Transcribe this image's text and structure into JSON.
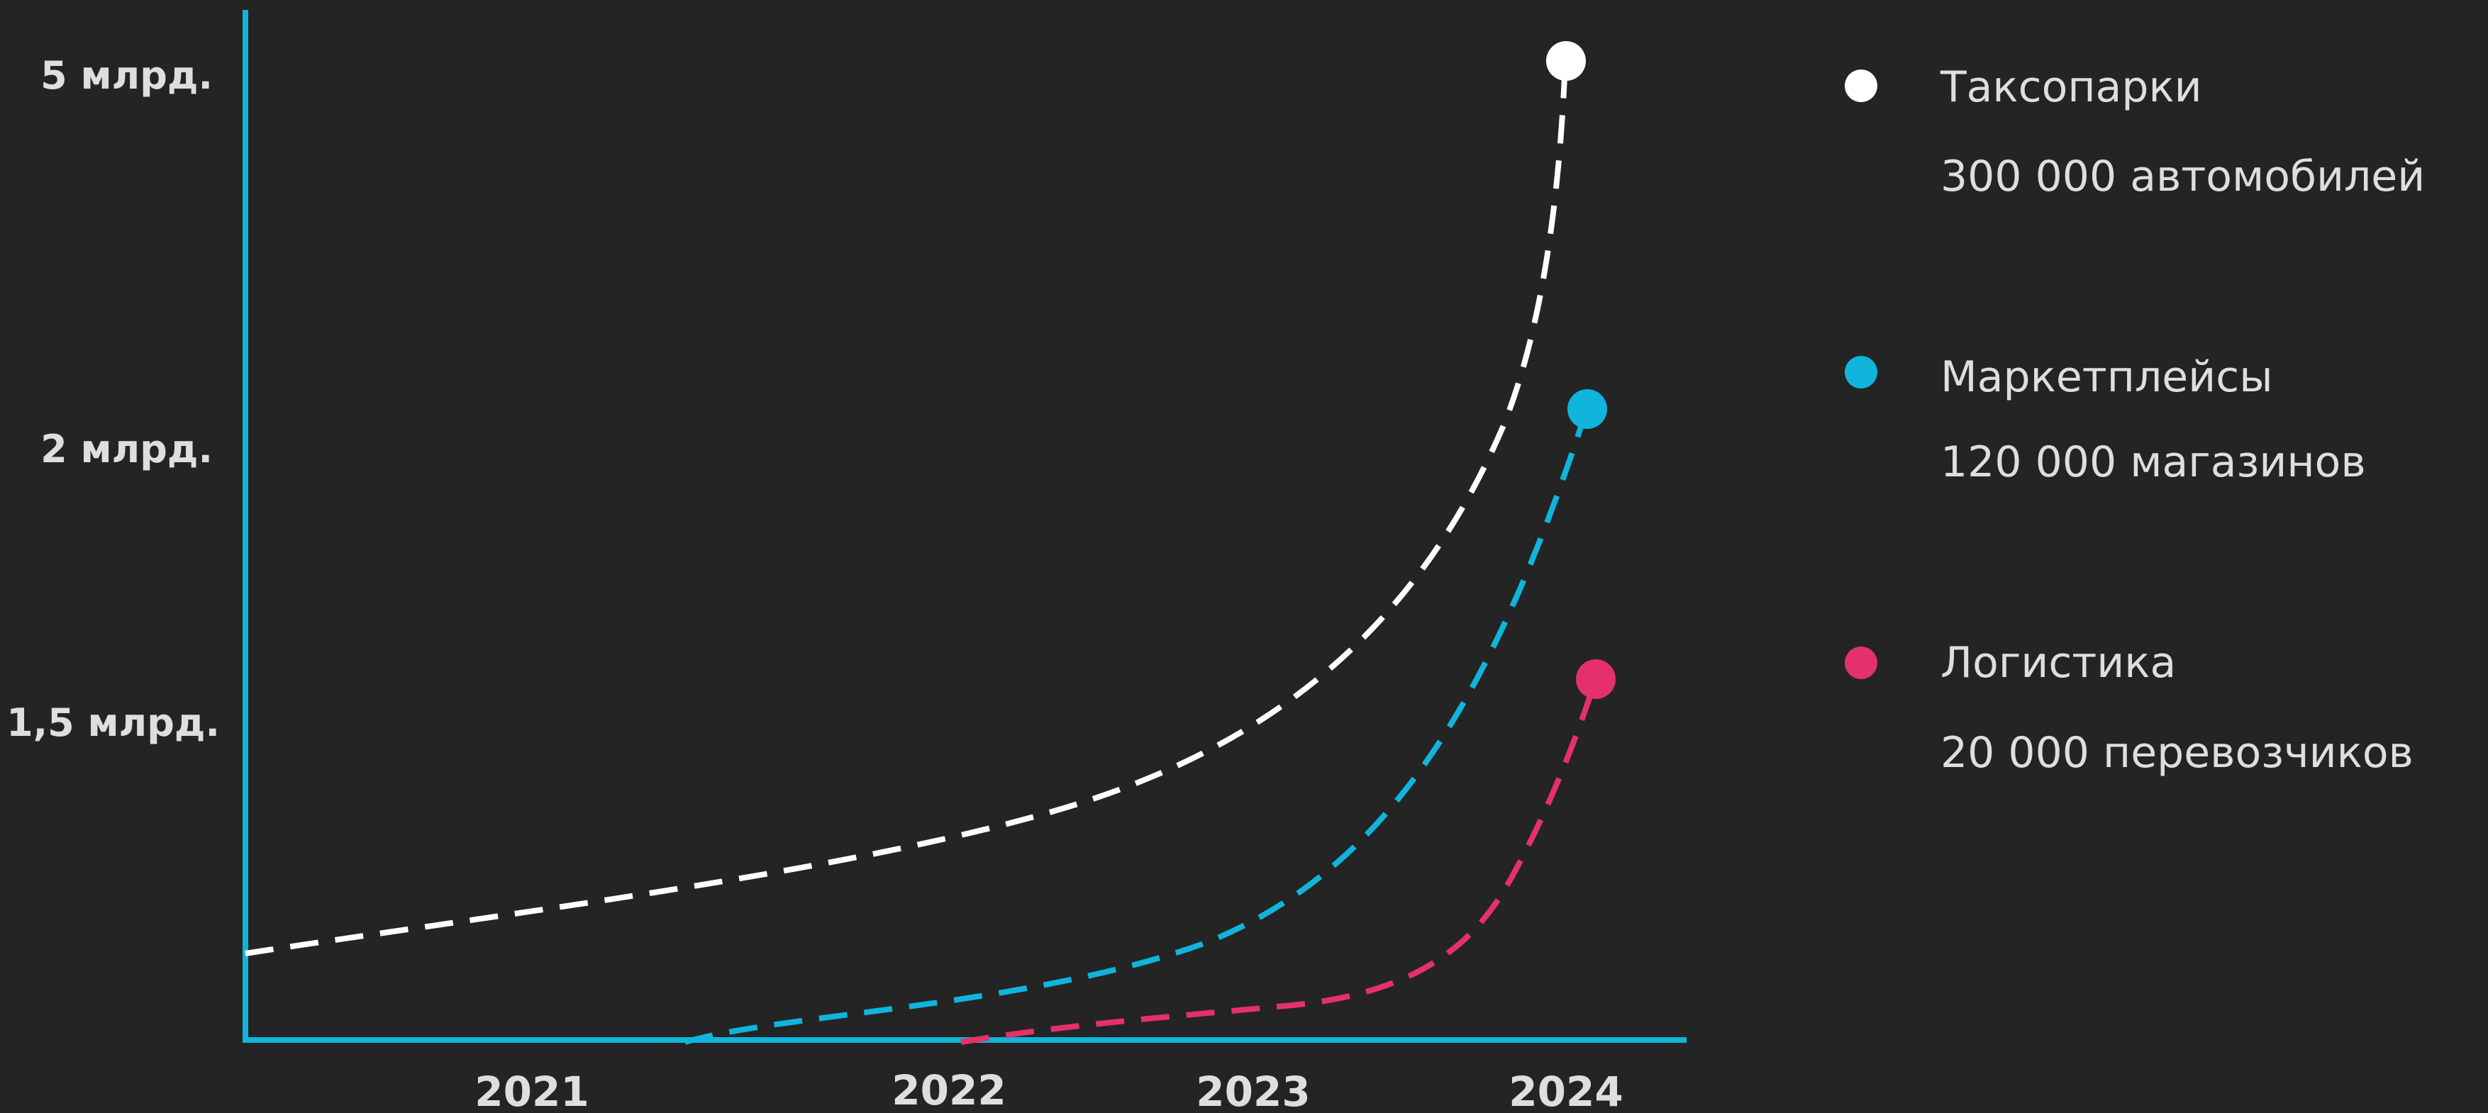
{
  "chart_data": {
    "type": "line",
    "x": [
      "2021",
      "2022",
      "2023",
      "2024"
    ],
    "y_ticks": [
      "5 млрд.",
      "2 млрд.",
      "1,5 млрд."
    ],
    "series": [
      {
        "name": "Таксопарки",
        "detail": "300 000 автомобилей",
        "color": "#ffffff",
        "end_value": "5 млрд."
      },
      {
        "name": "Маркетплейсы",
        "detail": "120 000 магазинов",
        "color": "#10b4dc",
        "end_value": "2 млрд."
      },
      {
        "name": "Логистика",
        "detail": "20 000 перевозчиков",
        "color": "#e5306c",
        "end_value": "1,5 млрд."
      }
    ],
    "axis_color": "#10b4dc",
    "grid": false,
    "legend": "right"
  }
}
